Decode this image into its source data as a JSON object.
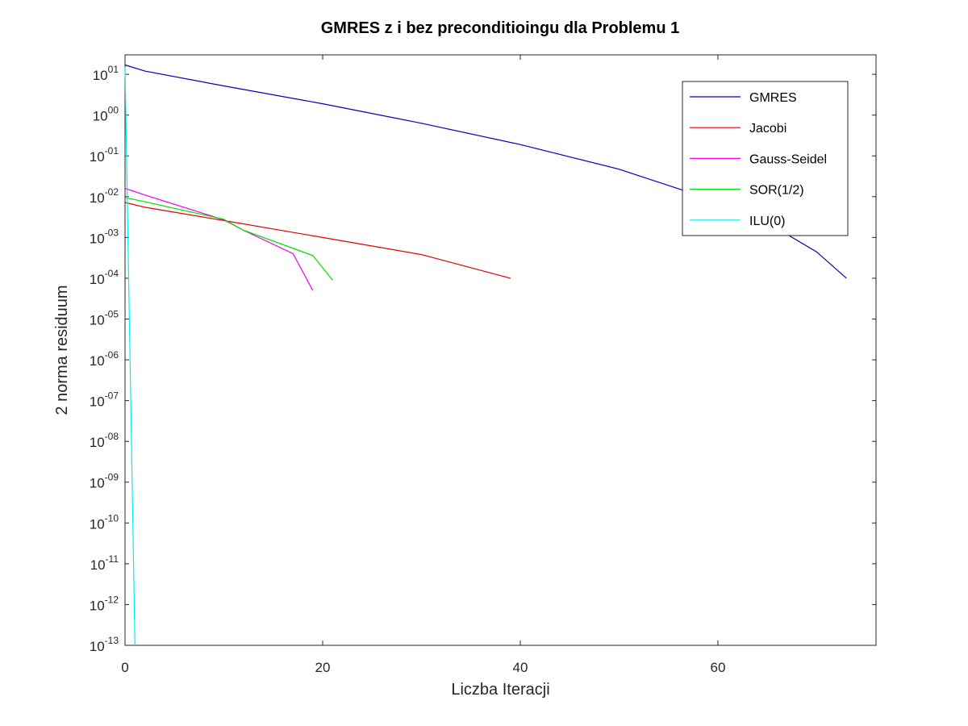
{
  "chart_data": {
    "type": "line",
    "title": "GMRES z i bez preconditioingu dla Problemu 1",
    "xlabel": "Liczba Iteracji",
    "ylabel": "2 norma residuum",
    "yscale": "log",
    "xlim": [
      0,
      76
    ],
    "ylim": [
      1e-13,
      30
    ],
    "xticks": [
      0,
      20,
      40,
      60
    ],
    "xtick_labels": [
      "0",
      "20",
      "40",
      "60"
    ],
    "yticks": [
      1,
      0,
      -1,
      -2,
      -3,
      -4,
      -5,
      -6,
      -7,
      -8,
      -9,
      -10,
      -11,
      -12,
      -13
    ],
    "ytick_labels": [
      {
        "base": "10",
        "exp": "01"
      },
      {
        "base": "10",
        "exp": "00"
      },
      {
        "base": "10",
        "exp": "-01"
      },
      {
        "base": "10",
        "exp": "-02"
      },
      {
        "base": "10",
        "exp": "-03"
      },
      {
        "base": "10",
        "exp": "-04"
      },
      {
        "base": "10",
        "exp": "-05"
      },
      {
        "base": "10",
        "exp": "-06"
      },
      {
        "base": "10",
        "exp": "-07"
      },
      {
        "base": "10",
        "exp": "-08"
      },
      {
        "base": "10",
        "exp": "-09"
      },
      {
        "base": "10",
        "exp": "-10"
      },
      {
        "base": "10",
        "exp": "-11"
      },
      {
        "base": "10",
        "exp": "-12"
      },
      {
        "base": "10",
        "exp": "-13"
      }
    ],
    "grid": false,
    "legend_position": "top-right",
    "series": [
      {
        "name": "GMRES",
        "color": "#0000b4",
        "x": [
          0,
          2,
          10,
          20,
          30,
          40,
          50,
          60,
          65,
          70,
          73
        ],
        "y": [
          17,
          12,
          5.2,
          1.9,
          0.63,
          0.19,
          0.047,
          0.0075,
          0.0023,
          0.00044,
          0.0001
        ]
      },
      {
        "name": "Jacobi",
        "color": "#e00000",
        "x": [
          0,
          2,
          10,
          20,
          30,
          39
        ],
        "y": [
          0.0072,
          0.0055,
          0.0026,
          0.001,
          0.00038,
          0.0001
        ]
      },
      {
        "name": "Gauss-Seidel",
        "color": "#f000f0",
        "x": [
          0,
          2,
          10,
          12,
          17,
          19
        ],
        "y": [
          0.016,
          0.011,
          0.0027,
          0.0015,
          0.0004,
          5e-05
        ]
      },
      {
        "name": "SOR(1/2)",
        "color": "#00dd00",
        "x": [
          0,
          2,
          10,
          12,
          19,
          21
        ],
        "y": [
          0.0095,
          0.0075,
          0.0028,
          0.0015,
          0.00036,
          9e-05
        ]
      },
      {
        "name": "ILU(0)",
        "color": "#00eeee",
        "x": [
          0,
          1
        ],
        "y": [
          15,
          1e-13
        ]
      }
    ]
  }
}
